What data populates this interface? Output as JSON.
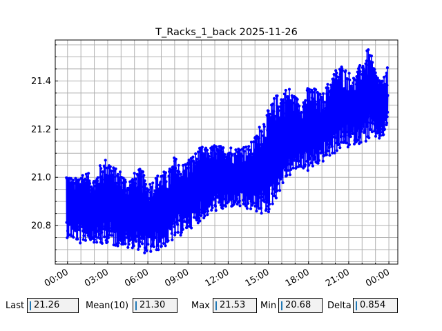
{
  "chart_data": {
    "type": "line",
    "title": "T_Racks_1_back 2025-11-26",
    "xlabel": "",
    "ylabel": "",
    "x_ticks": [
      "00:00",
      "03:00",
      "06:00",
      "09:00",
      "12:00",
      "15:00",
      "18:00",
      "21:00",
      "00:00"
    ],
    "y_ticks": [
      "20.8",
      "21.0",
      "21.2",
      "21.4"
    ],
    "xlim": [
      "2025-11-25 23:05",
      "2025-11-27 00:40"
    ],
    "ylim": [
      20.64,
      21.57
    ],
    "grid": true,
    "series": [
      {
        "color": "#0000ff",
        "marker": "circle",
        "x": [
          "2025-11-25 23:55",
          "2025-11-26 00:30",
          "2025-11-26 01:00",
          "2025-11-26 01:30",
          "2025-11-26 02:00",
          "2025-11-26 02:30",
          "2025-11-26 03:00",
          "2025-11-26 03:30",
          "2025-11-26 04:00",
          "2025-11-26 04:30",
          "2025-11-26 05:00",
          "2025-11-26 05:30",
          "2025-11-26 06:00",
          "2025-11-26 06:30",
          "2025-11-26 07:00",
          "2025-11-26 07:30",
          "2025-11-26 08:00",
          "2025-11-26 08:30",
          "2025-11-26 09:00",
          "2025-11-26 09:30",
          "2025-11-26 10:00",
          "2025-11-26 10:30",
          "2025-11-26 11:00",
          "2025-11-26 11:30",
          "2025-11-26 12:00",
          "2025-11-26 12:30",
          "2025-11-26 13:00",
          "2025-11-26 13:30",
          "2025-11-26 14:00",
          "2025-11-26 14:30",
          "2025-11-26 15:00",
          "2025-11-26 15:30",
          "2025-11-26 16:00",
          "2025-11-26 16:30",
          "2025-11-26 17:00",
          "2025-11-26 17:30",
          "2025-11-26 18:00",
          "2025-11-26 18:30",
          "2025-11-26 19:00",
          "2025-11-26 19:30",
          "2025-11-26 20:00",
          "2025-11-26 20:30",
          "2025-11-26 21:00",
          "2025-11-26 21:30",
          "2025-11-26 22:00",
          "2025-11-26 22:30",
          "2025-11-26 23:00",
          "2025-11-26 23:30",
          "2025-11-26 23:55"
        ],
        "low": [
          20.75,
          20.74,
          20.72,
          20.74,
          20.73,
          20.71,
          20.73,
          20.71,
          20.72,
          20.7,
          20.71,
          20.69,
          20.68,
          20.69,
          20.7,
          20.72,
          20.74,
          20.76,
          20.78,
          20.8,
          20.82,
          20.84,
          20.86,
          20.86,
          20.87,
          20.88,
          20.87,
          20.86,
          20.86,
          20.84,
          20.85,
          20.9,
          20.96,
          21.0,
          21.02,
          21.04,
          21.02,
          21.04,
          21.06,
          21.08,
          21.1,
          21.12,
          21.12,
          21.14,
          21.14,
          21.15,
          21.16,
          21.15,
          21.22
        ],
        "high": [
          21.03,
          20.99,
          21.03,
          21.02,
          21.0,
          21.06,
          21.09,
          21.04,
          21.03,
          20.99,
          21.02,
          21.04,
          20.98,
          21.0,
          21.03,
          21.02,
          21.09,
          21.05,
          21.08,
          21.1,
          21.13,
          21.12,
          21.14,
          21.13,
          21.14,
          21.12,
          21.14,
          21.13,
          21.17,
          21.24,
          21.28,
          21.34,
          21.36,
          21.38,
          21.34,
          21.32,
          21.38,
          21.37,
          21.34,
          21.4,
          21.45,
          21.47,
          21.44,
          21.42,
          21.49,
          21.54,
          21.45,
          21.4,
          21.46
        ]
      }
    ]
  },
  "stats": {
    "last": {
      "label": "Last",
      "value": "21.26"
    },
    "mean": {
      "label": "Mean(10)",
      "value": "21.30"
    },
    "max": {
      "label": "Max",
      "value": "21.53"
    },
    "min": {
      "label": "Min",
      "value": "20.68"
    },
    "delta": {
      "label": "Delta",
      "value": "0.854"
    }
  }
}
